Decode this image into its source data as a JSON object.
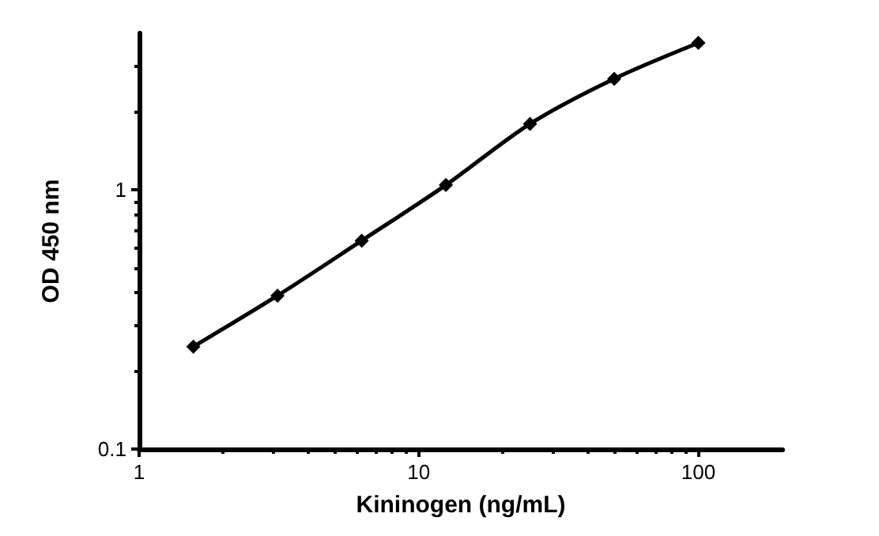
{
  "chart_data": {
    "type": "line",
    "xlabel": "Kininogen (ng/mL)",
    "ylabel": "OD 450 nm",
    "log": "xy",
    "x": [
      1.5625,
      3.125,
      6.25,
      12.5,
      25,
      50,
      100
    ],
    "series": [
      {
        "color": "#000000",
        "values": [
          0.248,
          0.39,
          0.635,
          1.04,
          1.79,
          2.67,
          3.67
        ]
      }
    ],
    "xlim": [
      1,
      200
    ],
    "xticks": [
      1,
      10,
      100
    ],
    "ylim": [
      0.1,
      4
    ],
    "yticks": [
      {
        "value": 0.1,
        "label": "0.1"
      },
      1
    ],
    "marker": "diamond",
    "line_style": "solid",
    "grid": false
  }
}
